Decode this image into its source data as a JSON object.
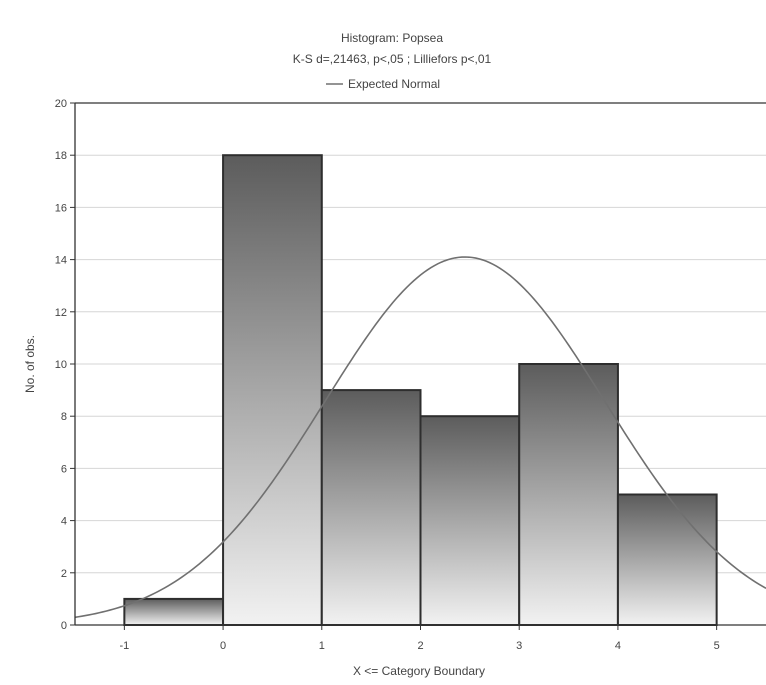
{
  "chart_data": {
    "type": "bar",
    "title": "Histogram: Popsea",
    "subtitle": "K-S d=,21463, p<,05 ; Lilliefors p<,01",
    "legend": {
      "entries": [
        "Expected Normal"
      ],
      "placement": "top-center"
    },
    "xlabel": "X <= Category Boundary",
    "ylabel": "No. of obs.",
    "xlim": [
      -1.5,
      5.5
    ],
    "ylim": [
      0,
      20
    ],
    "x_ticks": [
      -1,
      0,
      1,
      2,
      3,
      4,
      5
    ],
    "x_tick_labels": [
      "-1",
      "0",
      "1",
      "2",
      "3",
      "4",
      "5"
    ],
    "y_ticks": [
      0,
      2,
      4,
      6,
      8,
      10,
      12,
      14,
      16,
      18,
      20
    ],
    "y_tick_labels": [
      "0",
      "2",
      "4",
      "6",
      "8",
      "10",
      "12",
      "14",
      "16",
      "18",
      "20"
    ],
    "grid": true,
    "bins": [
      {
        "from": -1,
        "to": 0,
        "count": 1
      },
      {
        "from": 0,
        "to": 1,
        "count": 18
      },
      {
        "from": 1,
        "to": 2,
        "count": 9
      },
      {
        "from": 2,
        "to": 3,
        "count": 8
      },
      {
        "from": 3,
        "to": 4,
        "count": 10
      },
      {
        "from": 4,
        "to": 5,
        "count": 5
      }
    ],
    "expected_normal": {
      "name": "Expected Normal",
      "peak_x": 2.45,
      "peak_y": 14.1,
      "points": [
        [
          -1.5,
          0.35
        ],
        [
          -1,
          0.97
        ],
        [
          0,
          3.5
        ],
        [
          1,
          8.5
        ],
        [
          2,
          13.5
        ],
        [
          2.45,
          14.1
        ],
        [
          3,
          13.4
        ],
        [
          4,
          8.0
        ],
        [
          5,
          3.0
        ],
        [
          5.5,
          1.5
        ]
      ]
    },
    "colors": {
      "bar_top": "#5c5c5c",
      "bar_bottom": "#f2f2f2",
      "bar_edge": "#2e2e2e",
      "curve": "#707070",
      "grid": "#d6d6d6"
    }
  }
}
